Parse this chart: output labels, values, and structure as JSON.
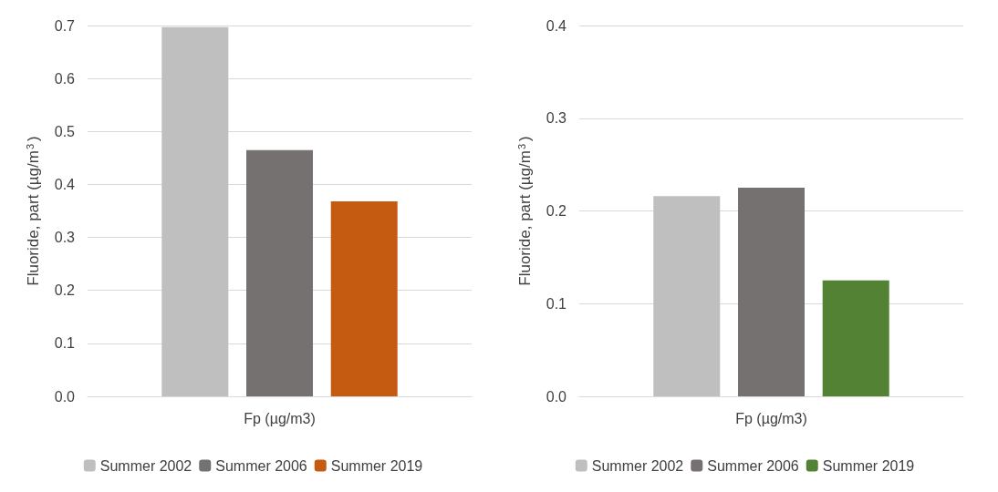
{
  "chart_data": [
    {
      "type": "bar",
      "categories": [
        "Fp (µg/m3)"
      ],
      "ylabel": "Fluoride, part (µg/m$^{3}$)",
      "ylim": [
        0,
        0.7
      ],
      "yticks": [
        {
          "value": 0,
          "label": "0.0"
        },
        {
          "value": 0.1,
          "label": "0.1"
        },
        {
          "value": 0.2,
          "label": "0.2"
        },
        {
          "value": 0.3,
          "label": "0.3"
        },
        {
          "value": 0.4,
          "label": "0.4"
        },
        {
          "value": 0.5,
          "label": "0.5"
        },
        {
          "value": 0.6,
          "label": "0.6"
        },
        {
          "value": 0.7,
          "label": "0.7"
        }
      ],
      "grid": "y",
      "legend": "bottom",
      "series": [
        {
          "name": "Summer 2002",
          "color": "#bfbfbf",
          "values": [
            0.697
          ]
        },
        {
          "name": "Summer 2006",
          "color": "#767171",
          "values": [
            0.465
          ]
        },
        {
          "name": "Summer 2019",
          "color": "#c55a11",
          "values": [
            0.368
          ]
        }
      ]
    },
    {
      "type": "bar",
      "categories": [
        "Fp (µg/m3)"
      ],
      "ylabel": "Fluoride, part (µg/m$^{3}$)",
      "ylim": [
        0,
        0.4
      ],
      "yticks": [
        {
          "value": 0,
          "label": "0.0"
        },
        {
          "value": 0.1,
          "label": "0.1"
        },
        {
          "value": 0.2,
          "label": "0.2"
        },
        {
          "value": 0.3,
          "label": "0.3"
        },
        {
          "value": 0.4,
          "label": "0.4"
        }
      ],
      "grid": "y",
      "legend": "bottom",
      "series": [
        {
          "name": "Summer 2002",
          "color": "#bfbfbf",
          "values": [
            0.216
          ]
        },
        {
          "name": "Summer 2006",
          "color": "#767171",
          "values": [
            0.225
          ]
        },
        {
          "name": "Summer 2019",
          "color": "#548235",
          "values": [
            0.125
          ]
        }
      ]
    }
  ]
}
